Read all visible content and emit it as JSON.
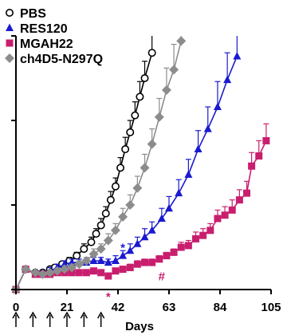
{
  "chart_data": {
    "type": "line",
    "xlabel": "Days",
    "ylabel": "",
    "xlim": [
      0,
      105
    ],
    "ylim": [
      0,
      1.5
    ],
    "x_ticks": [
      0,
      21,
      42,
      63,
      84,
      105
    ],
    "y_ticks": [
      0,
      0.5,
      1.0,
      1.5
    ],
    "grid": false,
    "legend_position": "top-left",
    "dosing_days": [
      0,
      7,
      14,
      21,
      28,
      35
    ],
    "series": [
      {
        "name": "PBS",
        "color": "#000000",
        "marker": "circle-open",
        "points": [
          {
            "x": 0,
            "y": 0.0,
            "err": 0.0
          },
          {
            "x": 4,
            "y": 0.12,
            "err": 0.01
          },
          {
            "x": 8,
            "y": 0.1,
            "err": 0.01
          },
          {
            "x": 11,
            "y": 0.1,
            "err": 0.01
          },
          {
            "x": 14,
            "y": 0.12,
            "err": 0.01
          },
          {
            "x": 16,
            "y": 0.13,
            "err": 0.01
          },
          {
            "x": 19,
            "y": 0.15,
            "err": 0.01
          },
          {
            "x": 22,
            "y": 0.17,
            "err": 0.02
          },
          {
            "x": 25,
            "y": 0.2,
            "err": 0.02
          },
          {
            "x": 28,
            "y": 0.24,
            "err": 0.03
          },
          {
            "x": 31,
            "y": 0.28,
            "err": 0.03
          },
          {
            "x": 33,
            "y": 0.33,
            "err": 0.03
          },
          {
            "x": 35,
            "y": 0.38,
            "err": 0.04
          },
          {
            "x": 37,
            "y": 0.45,
            "err": 0.04
          },
          {
            "x": 39,
            "y": 0.53,
            "err": 0.05
          },
          {
            "x": 41,
            "y": 0.61,
            "err": 0.05
          },
          {
            "x": 43,
            "y": 0.72,
            "err": 0.06
          },
          {
            "x": 45,
            "y": 0.83,
            "err": 0.07
          },
          {
            "x": 47,
            "y": 0.93,
            "err": 0.07
          },
          {
            "x": 49,
            "y": 1.03,
            "err": 0.08
          },
          {
            "x": 51,
            "y": 1.14,
            "err": 0.09
          },
          {
            "x": 53,
            "y": 1.25,
            "err": 0.1
          },
          {
            "x": 56,
            "y": 1.4,
            "err": 0.12
          }
        ]
      },
      {
        "name": "RES120",
        "color": "#1a1ad0",
        "marker": "triangle",
        "points": [
          {
            "x": 0,
            "y": 0.0,
            "err": 0.0
          },
          {
            "x": 4,
            "y": 0.12,
            "err": 0.01
          },
          {
            "x": 8,
            "y": 0.09,
            "err": 0.01
          },
          {
            "x": 11,
            "y": 0.1,
            "err": 0.01
          },
          {
            "x": 14,
            "y": 0.11,
            "err": 0.02
          },
          {
            "x": 17,
            "y": 0.13,
            "err": 0.02
          },
          {
            "x": 20,
            "y": 0.15,
            "err": 0.02
          },
          {
            "x": 23,
            "y": 0.16,
            "err": 0.02
          },
          {
            "x": 26,
            "y": 0.16,
            "err": 0.02
          },
          {
            "x": 29,
            "y": 0.16,
            "err": 0.02
          },
          {
            "x": 32,
            "y": 0.17,
            "err": 0.02
          },
          {
            "x": 35,
            "y": 0.17,
            "err": 0.02
          },
          {
            "x": 38,
            "y": 0.16,
            "err": 0.02
          },
          {
            "x": 41,
            "y": 0.17,
            "err": 0.03
          },
          {
            "x": 44,
            "y": 0.2,
            "err": 0.03
          },
          {
            "x": 47,
            "y": 0.23,
            "err": 0.04
          },
          {
            "x": 50,
            "y": 0.27,
            "err": 0.04
          },
          {
            "x": 53,
            "y": 0.31,
            "err": 0.05
          },
          {
            "x": 56,
            "y": 0.35,
            "err": 0.05
          },
          {
            "x": 60,
            "y": 0.42,
            "err": 0.06
          },
          {
            "x": 63,
            "y": 0.48,
            "err": 0.07
          },
          {
            "x": 67,
            "y": 0.57,
            "err": 0.08
          },
          {
            "x": 71,
            "y": 0.68,
            "err": 0.09
          },
          {
            "x": 75,
            "y": 0.83,
            "err": 0.11
          },
          {
            "x": 79,
            "y": 0.95,
            "err": 0.13
          },
          {
            "x": 83,
            "y": 1.08,
            "err": 0.15
          },
          {
            "x": 87,
            "y": 1.24,
            "err": 0.16
          },
          {
            "x": 91,
            "y": 1.38,
            "err": 0.17
          }
        ]
      },
      {
        "name": "MGAH22",
        "color": "#c81e6e",
        "marker": "square",
        "points": [
          {
            "x": 0,
            "y": 0.0,
            "err": 0.0
          },
          {
            "x": 4,
            "y": 0.12,
            "err": 0.01
          },
          {
            "x": 8,
            "y": 0.09,
            "err": 0.01
          },
          {
            "x": 11,
            "y": 0.09,
            "err": 0.01
          },
          {
            "x": 14,
            "y": 0.09,
            "err": 0.01
          },
          {
            "x": 17,
            "y": 0.1,
            "err": 0.01
          },
          {
            "x": 20,
            "y": 0.1,
            "err": 0.01
          },
          {
            "x": 23,
            "y": 0.1,
            "err": 0.01
          },
          {
            "x": 26,
            "y": 0.1,
            "err": 0.01
          },
          {
            "x": 29,
            "y": 0.1,
            "err": 0.01
          },
          {
            "x": 32,
            "y": 0.11,
            "err": 0.01
          },
          {
            "x": 35,
            "y": 0.1,
            "err": 0.01
          },
          {
            "x": 38,
            "y": 0.08,
            "err": 0.01
          },
          {
            "x": 41,
            "y": 0.11,
            "err": 0.01
          },
          {
            "x": 44,
            "y": 0.12,
            "err": 0.01
          },
          {
            "x": 47,
            "y": 0.13,
            "err": 0.02
          },
          {
            "x": 50,
            "y": 0.15,
            "err": 0.02
          },
          {
            "x": 53,
            "y": 0.16,
            "err": 0.02
          },
          {
            "x": 56,
            "y": 0.16,
            "err": 0.02
          },
          {
            "x": 59,
            "y": 0.18,
            "err": 0.02
          },
          {
            "x": 62,
            "y": 0.2,
            "err": 0.02
          },
          {
            "x": 65,
            "y": 0.22,
            "err": 0.02
          },
          {
            "x": 68,
            "y": 0.25,
            "err": 0.03
          },
          {
            "x": 71,
            "y": 0.26,
            "err": 0.03
          },
          {
            "x": 74,
            "y": 0.3,
            "err": 0.04
          },
          {
            "x": 77,
            "y": 0.32,
            "err": 0.04
          },
          {
            "x": 80,
            "y": 0.35,
            "err": 0.04
          },
          {
            "x": 83,
            "y": 0.42,
            "err": 0.05
          },
          {
            "x": 86,
            "y": 0.44,
            "err": 0.05
          },
          {
            "x": 89,
            "y": 0.47,
            "err": 0.06
          },
          {
            "x": 92,
            "y": 0.53,
            "err": 0.06
          },
          {
            "x": 95,
            "y": 0.57,
            "err": 0.07
          },
          {
            "x": 97,
            "y": 0.73,
            "err": 0.08
          },
          {
            "x": 100,
            "y": 0.79,
            "err": 0.09
          },
          {
            "x": 103,
            "y": 0.88,
            "err": 0.1
          }
        ]
      },
      {
        "name": "ch4D5-N297Q",
        "color": "#8c8c8c",
        "marker": "diamond",
        "points": [
          {
            "x": 0,
            "y": 0.0,
            "err": 0.0
          },
          {
            "x": 4,
            "y": 0.12,
            "err": 0.01
          },
          {
            "x": 8,
            "y": 0.1,
            "err": 0.01
          },
          {
            "x": 11,
            "y": 0.09,
            "err": 0.01
          },
          {
            "x": 14,
            "y": 0.1,
            "err": 0.01
          },
          {
            "x": 17,
            "y": 0.11,
            "err": 0.01
          },
          {
            "x": 20,
            "y": 0.12,
            "err": 0.02
          },
          {
            "x": 23,
            "y": 0.13,
            "err": 0.02
          },
          {
            "x": 26,
            "y": 0.15,
            "err": 0.02
          },
          {
            "x": 29,
            "y": 0.17,
            "err": 0.02
          },
          {
            "x": 32,
            "y": 0.21,
            "err": 0.03
          },
          {
            "x": 35,
            "y": 0.24,
            "err": 0.03
          },
          {
            "x": 38,
            "y": 0.29,
            "err": 0.04
          },
          {
            "x": 41,
            "y": 0.35,
            "err": 0.04
          },
          {
            "x": 44,
            "y": 0.43,
            "err": 0.05
          },
          {
            "x": 47,
            "y": 0.5,
            "err": 0.06
          },
          {
            "x": 50,
            "y": 0.6,
            "err": 0.07
          },
          {
            "x": 53,
            "y": 0.72,
            "err": 0.08
          },
          {
            "x": 56,
            "y": 0.86,
            "err": 0.09
          },
          {
            "x": 59,
            "y": 1.02,
            "err": 0.11
          },
          {
            "x": 62,
            "y": 1.18,
            "err": 0.13
          },
          {
            "x": 65,
            "y": 1.3,
            "err": 0.15
          },
          {
            "x": 68,
            "y": 1.47,
            "err": 0.17
          }
        ]
      }
    ],
    "annotations": [
      {
        "text": "*",
        "x": 44,
        "y": 0.29,
        "color": "#1a1ad0"
      },
      {
        "text": "*",
        "x": 38,
        "y": 0.0,
        "color": "#c81e6e"
      },
      {
        "text": "#",
        "x": 60,
        "y": 0.12,
        "color": "#c81e6e"
      }
    ]
  }
}
